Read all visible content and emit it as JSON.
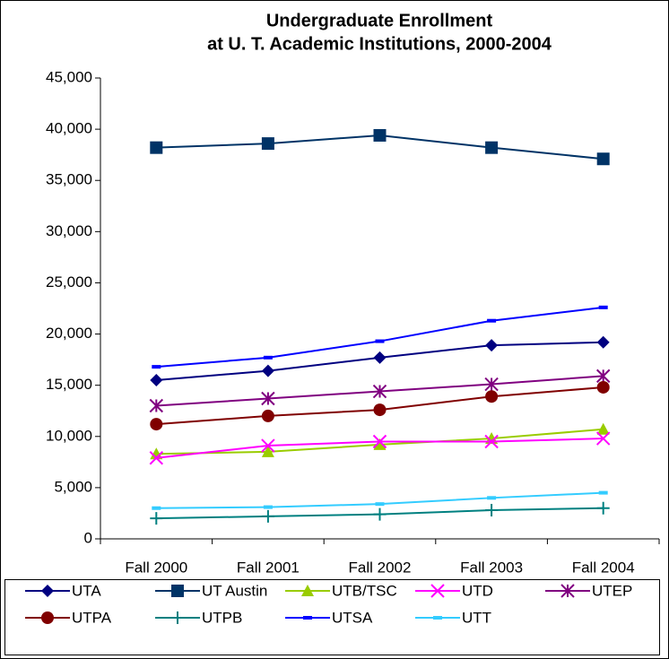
{
  "chart_data": {
    "type": "line",
    "title": [
      "Undergraduate Enrollment",
      "at U. T. Academic Institutions, 2000-2004"
    ],
    "categories": [
      "Fall 2000",
      "Fall 2001",
      "Fall 2002",
      "Fall 2003",
      "Fall 2004"
    ],
    "ylim": [
      0,
      45000
    ],
    "yticks": [
      0,
      {
        "value": 5000,
        "label": "5,000"
      },
      {
        "value": 10000,
        "label": "10,000"
      },
      {
        "value": 15000,
        "label": "15,000"
      },
      {
        "value": 20000,
        "label": "20,000"
      },
      {
        "value": 25000,
        "label": "25,000"
      },
      {
        "value": 30000,
        "label": "30,000"
      },
      {
        "value": 35000,
        "label": "35,000"
      },
      {
        "value": 40000,
        "label": "40,000"
      },
      {
        "value": 45000,
        "label": "45,000"
      }
    ],
    "grid": false,
    "legend": "bottom",
    "series": [
      {
        "name": "UTA",
        "color": "#000080",
        "marker": "diamond",
        "values": [
          15500,
          16400,
          17700,
          18900,
          19200
        ]
      },
      {
        "name": "UT Austin",
        "color": "#003366",
        "marker": "square",
        "values": [
          38200,
          38600,
          39400,
          38200,
          37100
        ]
      },
      {
        "name": "UTB/TSC",
        "color": "#99cc00",
        "marker": "triangle",
        "values": [
          8300,
          8500,
          9200,
          9800,
          10700
        ]
      },
      {
        "name": "UTD",
        "color": "#ff00ff",
        "marker": "x",
        "values": [
          7900,
          9100,
          9500,
          9500,
          9800
        ]
      },
      {
        "name": "UTEP",
        "color": "#800080",
        "marker": "star",
        "values": [
          13000,
          13700,
          14400,
          15100,
          15900
        ]
      },
      {
        "name": "UTPA",
        "color": "#800000",
        "marker": "circle",
        "values": [
          11200,
          12000,
          12600,
          13900,
          14800
        ]
      },
      {
        "name": "UTPB",
        "color": "#008080",
        "marker": "plus",
        "values": [
          2000,
          2200,
          2400,
          2800,
          3000
        ]
      },
      {
        "name": "UTSA",
        "color": "#0000ff",
        "marker": "dash",
        "values": [
          16800,
          17700,
          19300,
          21300,
          22600
        ]
      },
      {
        "name": "UTT",
        "color": "#33ccff",
        "marker": "dash",
        "values": [
          3000,
          3100,
          3400,
          4000,
          4500
        ]
      }
    ]
  }
}
